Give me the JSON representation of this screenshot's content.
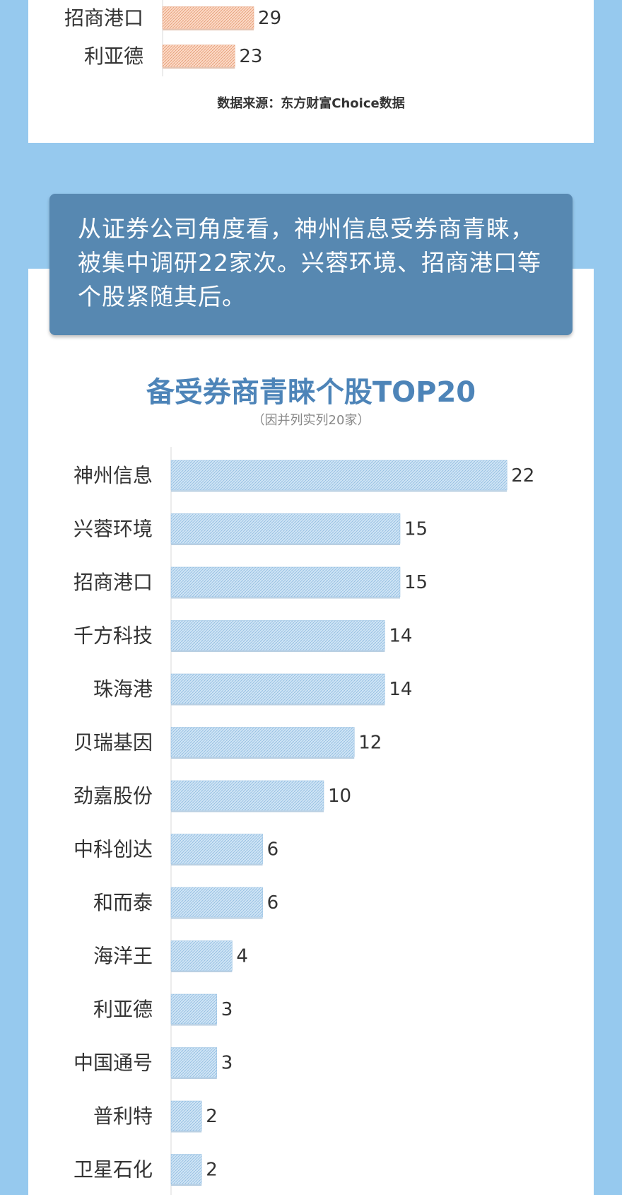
{
  "source_note": "数据来源：东方财富Choice数据",
  "callout": "从证券公司角度看，神州信息受券商青睐，被集中调研22家次。兴蓉环境、招商港口等个股紧随其后。",
  "colors": {
    "background": "#96c9ee",
    "callout": "#5788b1",
    "title": "#4d84b8",
    "bar_blue": "#a9cfec",
    "bar_orange": "#f3b494"
  },
  "chart_data": [
    {
      "type": "bar",
      "orientation": "horizontal",
      "categories": [
        "招商港口",
        "利亚德"
      ],
      "values": [
        29,
        23
      ],
      "title": "",
      "note": "数据来源：东方财富Choice数据"
    },
    {
      "type": "bar",
      "orientation": "horizontal",
      "title": "备受券商青睐个股TOP20",
      "subtitle": "（因并列实列20家）",
      "categories": [
        "神州信息",
        "兴蓉环境",
        "招商港口",
        "千方科技",
        "珠海港",
        "贝瑞基因",
        "劲嘉股份",
        "中科创达",
        "和而泰",
        "海洋王",
        "利亚德",
        "中国通号",
        "普利特",
        "卫星石化"
      ],
      "values": [
        22,
        15,
        15,
        14,
        14,
        12,
        10,
        6,
        6,
        4,
        3,
        3,
        2,
        2
      ]
    }
  ]
}
